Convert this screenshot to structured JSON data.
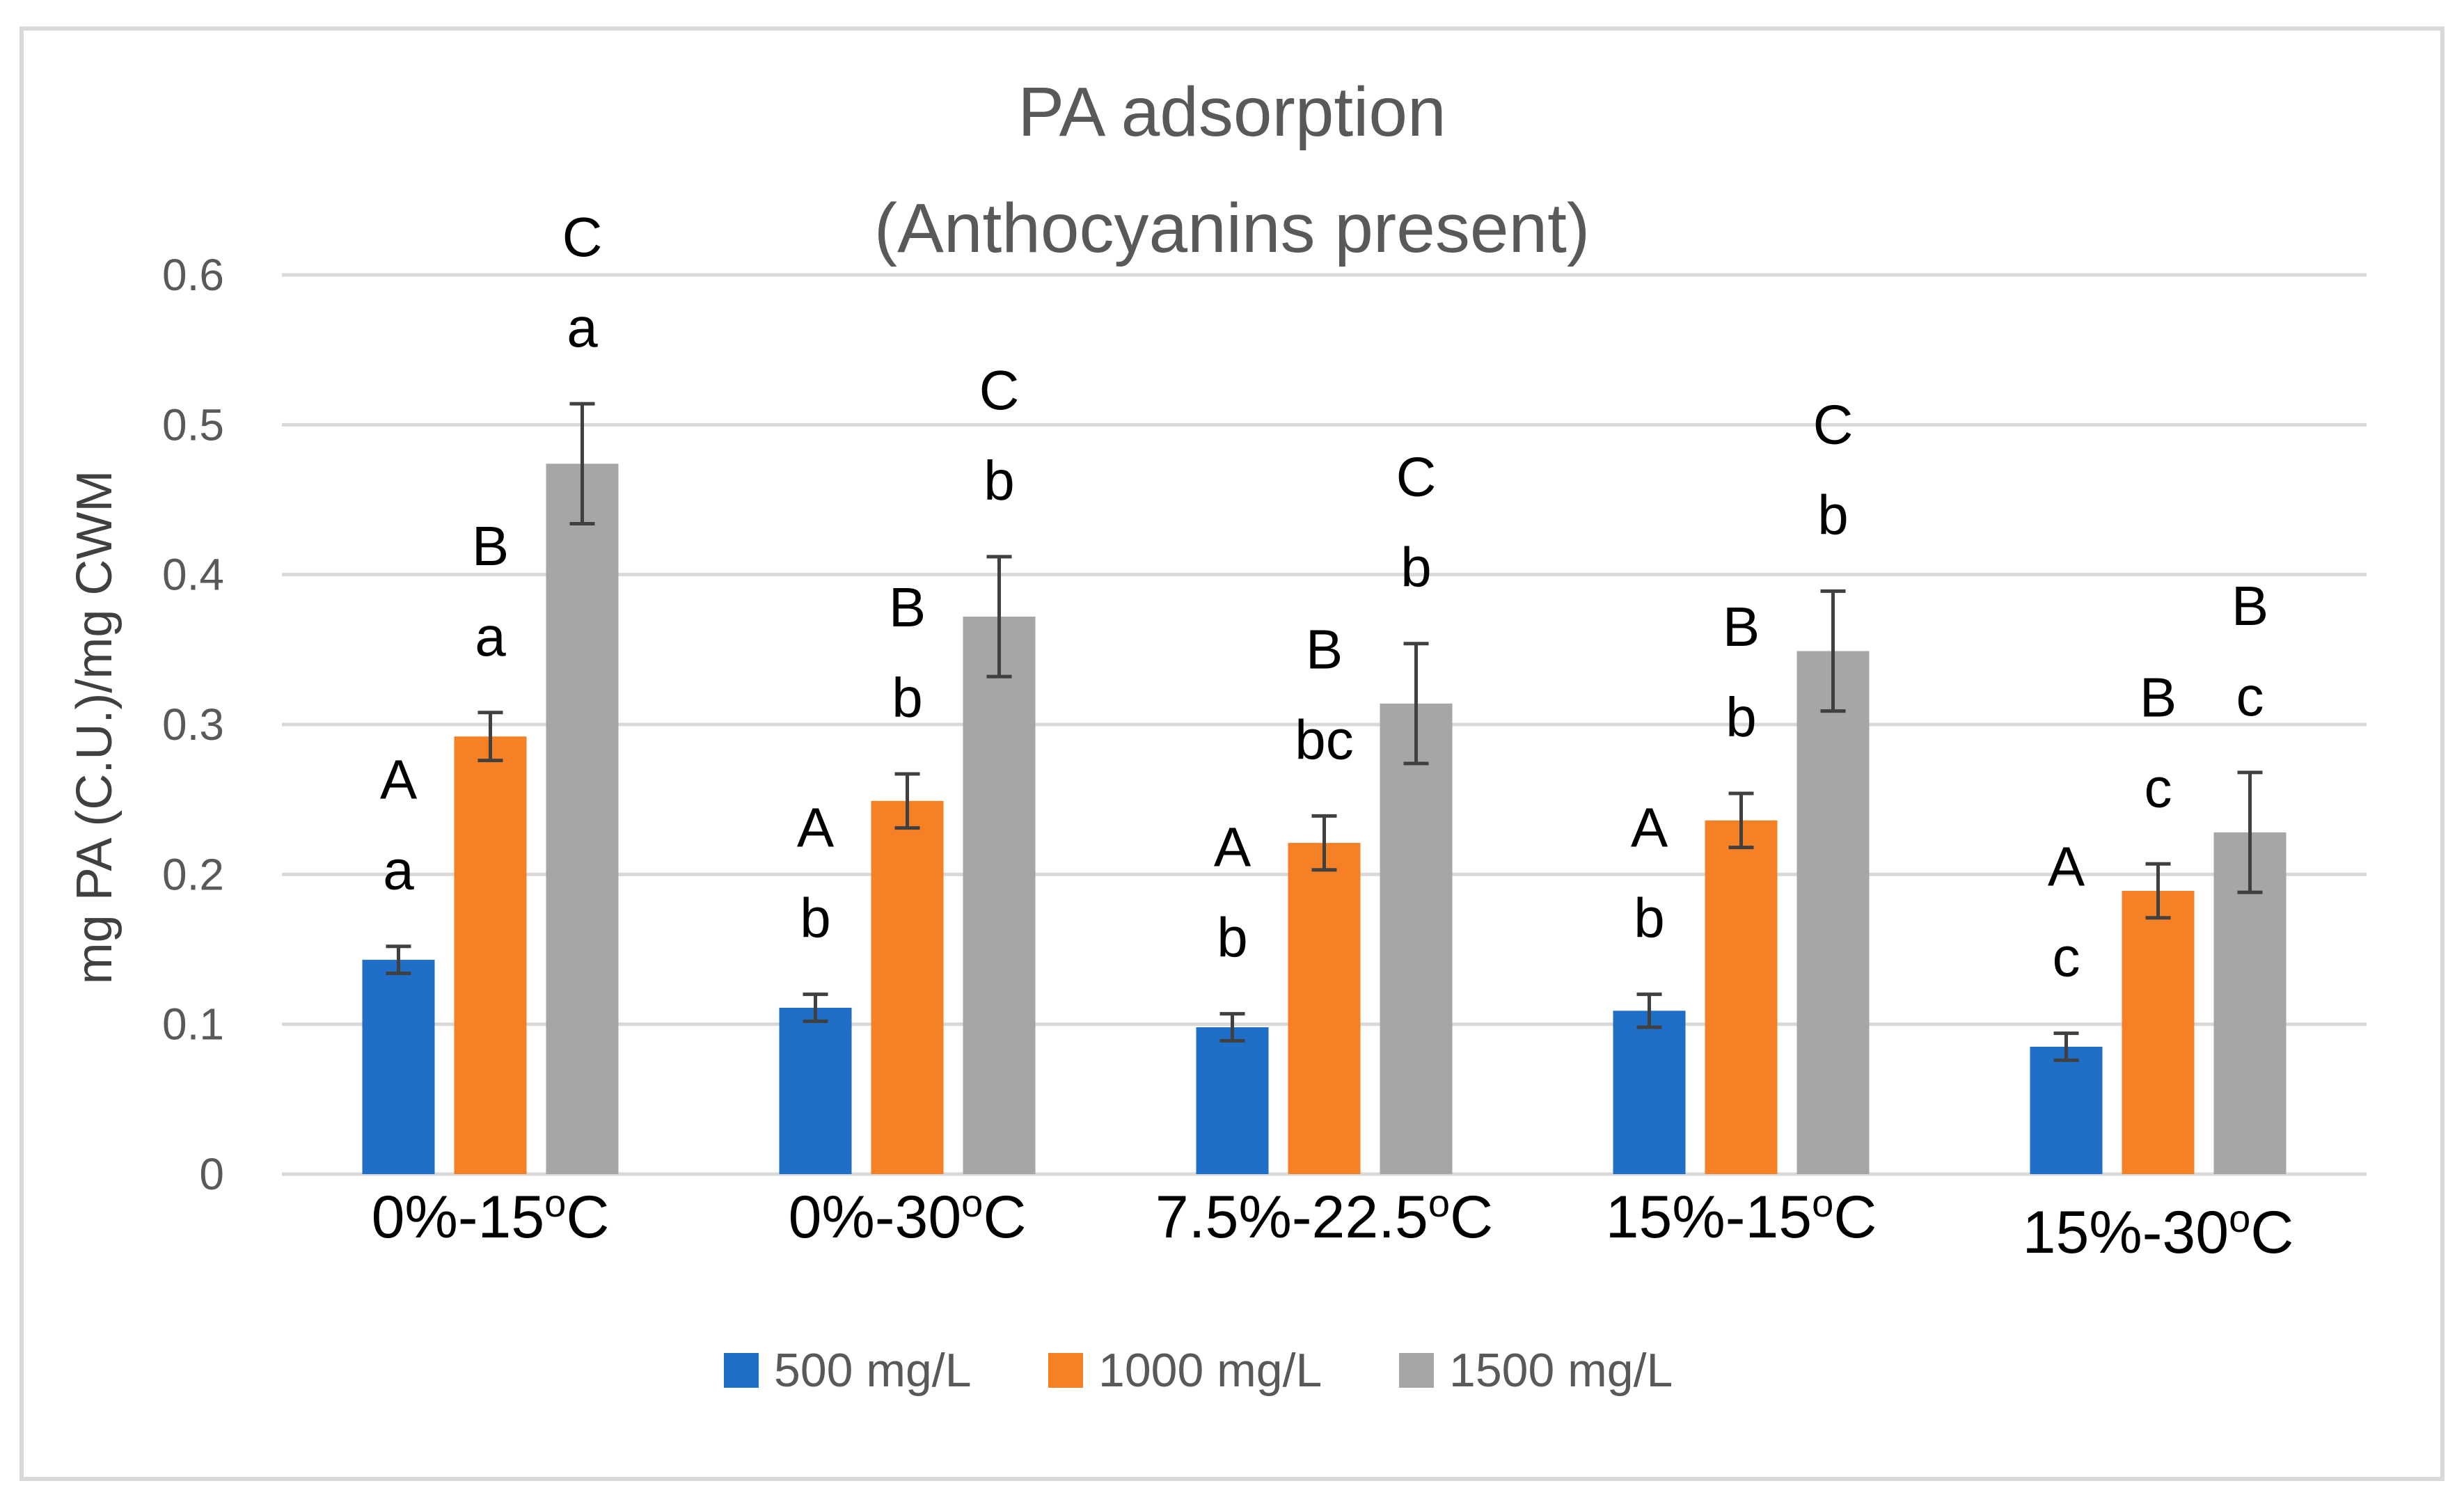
{
  "chart_data": {
    "type": "bar",
    "title": "PA adsorption",
    "subtitle": "(Anthocyanins present)",
    "ylabel": "mg PA (C.U.)/mg CWM",
    "xlabel": "",
    "ylim": [
      0,
      0.6
    ],
    "yticks": [
      0,
      0.1,
      0.2,
      0.3,
      0.4,
      0.5,
      0.6
    ],
    "ytick_labels": [
      "0",
      "0.1",
      "0.2",
      "0.3",
      "0.4",
      "0.5",
      "0.6"
    ],
    "grid": true,
    "legend_position": "bottom",
    "categories": [
      {
        "main": "0%-15",
        "sup": "o",
        "end": "C"
      },
      {
        "main": "0%-30",
        "sup": "o",
        "end": "C"
      },
      {
        "main": "7.5%-22.5",
        "sup": "o",
        "end": "C"
      },
      {
        "main": "15%-15",
        "sup": "o",
        "end": "C"
      },
      {
        "main": "15%-30",
        "sup": "o",
        "end": "C"
      }
    ],
    "series": [
      {
        "name": "500 mg/L",
        "color": "#1f6fc8",
        "values": [
          0.143,
          0.111,
          0.098,
          0.109,
          0.085
        ],
        "errors": [
          0.009,
          0.009,
          0.009,
          0.011,
          0.009
        ],
        "upper_letters": [
          "A",
          "A",
          "A",
          "A",
          "A"
        ],
        "lower_letters": [
          "a",
          "b",
          "b",
          "b",
          "c"
        ]
      },
      {
        "name": "1000 mg/L",
        "color": "#f58026",
        "values": [
          0.292,
          0.249,
          0.221,
          0.236,
          0.189
        ],
        "errors": [
          0.016,
          0.018,
          0.018,
          0.018,
          0.018
        ],
        "upper_letters": [
          "B",
          "B",
          "B",
          "B",
          "B"
        ],
        "lower_letters": [
          "a",
          "b",
          "bc",
          "b",
          "c"
        ]
      },
      {
        "name": "1500 mg/L",
        "color": "#a6a6a6",
        "values": [
          0.474,
          0.372,
          0.314,
          0.349,
          0.228
        ],
        "errors": [
          0.04,
          0.04,
          0.04,
          0.04,
          0.04
        ],
        "upper_letters": [
          "C",
          "C",
          "C",
          "C",
          "B"
        ],
        "lower_letters": [
          "a",
          "b",
          "b",
          "b",
          "c"
        ]
      }
    ],
    "colors": {
      "grid": "#d9d9d9",
      "error_bar": "#404040",
      "axis": "#d9d9d9"
    }
  }
}
